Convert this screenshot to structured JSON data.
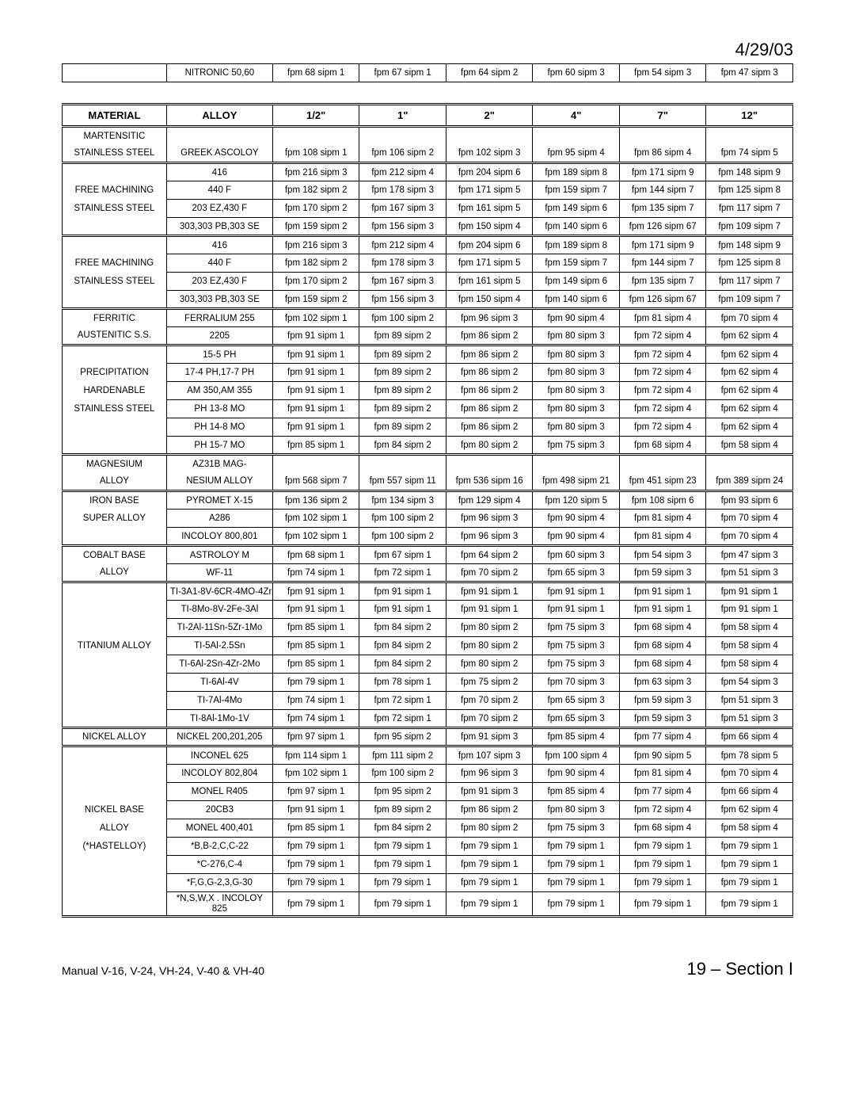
{
  "date": "4/29/03",
  "footer_left": "Manual V-16, V-24, VH-24, V-40 & VH-40",
  "footer_right": "19 – Section I",
  "headers": [
    "MATERIAL",
    "ALLOY",
    "1/2\"",
    "1\"",
    "2\"",
    "4\"",
    "7\"",
    "12\""
  ],
  "top_row": {
    "material": "",
    "alloy": "NITRONIC 50,60",
    "vals": [
      "fpm 68  sipm 1",
      "fpm 67  sipm 1",
      "fpm 64  sipm 2",
      "fpm 60  sipm 3",
      "fpm 54  sipm 3",
      "fpm 47  sipm 3"
    ]
  },
  "sections": [
    {
      "material_lines": [
        "MARTENSITIC",
        "STAINLESS STEEL"
      ],
      "rows": [
        {
          "alloy": "GREEK ASCOLOY",
          "vals": [
            "fpm 108 sipm 1",
            "fpm 106 sipm 2",
            "fpm 102 sipm 3",
            "fpm 95  sipm 4",
            "fpm 86  sipm 4",
            "fpm 74  sipm 5"
          ]
        }
      ],
      "first_row_spans_two": true
    },
    {
      "material_lines": [
        "",
        "FREE MACHINING",
        "STAINLESS STEEL",
        ""
      ],
      "rows": [
        {
          "alloy": "416",
          "vals": [
            "fpm 216 sipm 3",
            "fpm 212 sipm 4",
            "fpm 204 sipm 6",
            "fpm 189 sipm 8",
            "fpm 171 sipm 9",
            "fpm 148 sipm 9"
          ]
        },
        {
          "alloy": "440 F",
          "vals": [
            "fpm 182 sipm 2",
            "fpm 178 sipm 3",
            "fpm 171 sipm 5",
            "fpm 159 sipm 7",
            "fpm 144 sipm 7",
            "fpm 125 sipm 8"
          ]
        },
        {
          "alloy": "203 EZ,430 F",
          "vals": [
            "fpm 170 sipm 2",
            "fpm 167 sipm 3",
            "fpm 161 sipm 5",
            "fpm 149 sipm 6",
            "fpm 135 sipm 7",
            "fpm 117 sipm 7"
          ]
        },
        {
          "alloy": "303,303 PB,303 SE",
          "vals": [
            "fpm 159 sipm 2",
            "fpm 156 sipm 3",
            "fpm 150 sipm 4",
            "fpm 140 sipm 6",
            "fpm 126 sipm 67",
            "fpm 109 sipm 7"
          ]
        }
      ]
    },
    {
      "material_lines": [
        "",
        "FREE MACHINING",
        "STAINLESS STEEL",
        ""
      ],
      "rows": [
        {
          "alloy": "416",
          "vals": [
            "fpm 216 sipm 3",
            "fpm 212 sipm 4",
            "fpm 204 sipm 6",
            "fpm 189 sipm 8",
            "fpm 171 sipm 9",
            "fpm 148 sipm 9"
          ]
        },
        {
          "alloy": "440 F",
          "vals": [
            "fpm 182 sipm 2",
            "fpm 178 sipm 3",
            "fpm 171 sipm 5",
            "fpm 159 sipm 7",
            "fpm 144 sipm 7",
            "fpm 125 sipm 8"
          ]
        },
        {
          "alloy": "203 EZ,430 F",
          "vals": [
            "fpm 170 sipm 2",
            "fpm 167 sipm 3",
            "fpm 161 sipm 5",
            "fpm 149 sipm 6",
            "fpm 135 sipm 7",
            "fpm 117 sipm 7"
          ]
        },
        {
          "alloy": "303,303 PB,303 SE",
          "vals": [
            "fpm 159 sipm 2",
            "fpm 156 sipm 3",
            "fpm 150 sipm 4",
            "fpm 140 sipm 6",
            "fpm 126 sipm 67",
            "fpm 109 sipm 7"
          ]
        }
      ]
    },
    {
      "material_lines": [
        "FERRITIC",
        "AUSTENITIC S.S."
      ],
      "rows": [
        {
          "alloy": "FERRALIUM 255",
          "vals": [
            "fpm 102 sipm 1",
            "fpm 100 sipm 2",
            "fpm 96  sipm 3",
            "fpm 90  sipm 4",
            "fpm 81  sipm 4",
            "fpm 70   sipm 4"
          ]
        },
        {
          "alloy": "2205",
          "vals": [
            "fpm 91  sipm 1",
            "fpm 89  sipm 2",
            "fpm 86  sipm 2",
            "fpm 80  sipm 3",
            "fpm 72  sipm 4",
            "fpm 62  sipm 4"
          ]
        }
      ]
    },
    {
      "material_lines": [
        "",
        "PRECIPITATION",
        "HARDENABLE",
        "STAINLESS STEEL",
        "",
        ""
      ],
      "rows": [
        {
          "alloy": "15-5 PH",
          "vals": [
            "fpm 91  sipm 1",
            "fpm 89  sipm 2",
            "fpm 86  sipm 2",
            "fpm 80  sipm 3",
            "fpm 72  sipm 4",
            "fpm 62  sipm 4"
          ]
        },
        {
          "alloy": "17-4 PH,17-7 PH",
          "vals": [
            "fpm 91  sipm 1",
            "fpm 89  sipm 2",
            "fpm 86  sipm 2",
            "fpm 80  sipm 3",
            "fpm 72  sipm 4",
            "fpm 62  sipm 4"
          ]
        },
        {
          "alloy": "AM 350,AM 355",
          "vals": [
            "fpm 91  sipm 1",
            "fpm 89  sipm 2",
            "fpm 86  sipm 2",
            "fpm 80  sipm 3",
            "fpm 72  sipm 4",
            "fpm 62  sipm 4"
          ]
        },
        {
          "alloy": "PH 13-8 MO",
          "vals": [
            "fpm 91  sipm 1",
            "fpm 89  sipm 2",
            "fpm 86  sipm 2",
            "fpm 80  sipm 3",
            "fpm 72  sipm 4",
            "fpm 62  sipm 4"
          ]
        },
        {
          "alloy": "PH 14-8 MO",
          "vals": [
            "fpm 91  sipm 1",
            "fpm 89  sipm 2",
            "fpm 86  sipm 2",
            "fpm 80  sipm 3",
            "fpm 72  sipm 4",
            "fpm 62  sipm 4"
          ]
        },
        {
          "alloy": "PH 15-7 MO",
          "vals": [
            "fpm 85  sipm 1",
            "fpm 84  sipm 2",
            "fpm 80  sipm 2",
            "fpm 75  sipm 3",
            "fpm 68  sipm 4",
            "fpm 58  sipm 4"
          ]
        }
      ]
    },
    {
      "material_lines": [
        "MAGNESIUM",
        "ALLOY"
      ],
      "rows": [
        {
          "alloy": "AZ31B MAG-",
          "no_vals": true
        },
        {
          "alloy": "NESIUM ALLOY",
          "vals": [
            "fpm 568 sipm 7",
            "fpm 557 sipm 11",
            "fpm 536 sipm 16",
            "fpm 498 sipm 21",
            "fpm 451 sipm 23",
            "fpm 389 sipm 24"
          ]
        }
      ],
      "merge_val_rows": true
    },
    {
      "material_lines": [
        "IRON BASE",
        "SUPER ALLOY",
        ""
      ],
      "rows": [
        {
          "alloy": "PYROMET X-15",
          "vals": [
            "fpm 136 sipm 2",
            "fpm 134 sipm 3",
            "fpm 129 sipm 4",
            "fpm 120 sipm 5",
            "fpm 108 sipm 6",
            "fpm 93  sipm 6"
          ]
        },
        {
          "alloy": "A286",
          "vals": [
            "fpm 102 sipm 1",
            "fpm 100 sipm 2",
            "fpm 96  sipm 3",
            "fpm 90  sipm 4",
            "fpm 81  sipm 4",
            "fpm 70  sipm 4"
          ]
        },
        {
          "alloy": "INCOLOY 800,801",
          "vals": [
            "fpm 102 sipm 1",
            "fpm 100 sipm 2",
            "fpm 96  sipm 3",
            "fpm 90  sipm 4",
            "fpm 81  sipm 4",
            "fpm 70  sipm 4"
          ]
        }
      ]
    },
    {
      "material_lines": [
        "COBALT BASE",
        "ALLOY"
      ],
      "rows": [
        {
          "alloy": "ASTROLOY M",
          "vals": [
            "fpm 68  sipm 1",
            "fpm 67  sipm 1",
            "fpm 64  sipm 2",
            "fpm 60  sipm 3",
            "fpm 54  sipm 3",
            "fpm 47  sipm 3"
          ]
        },
        {
          "alloy": "WF-11",
          "vals": [
            "fpm 74  sipm 1",
            "fpm 72  sipm 1",
            "fpm 70  sipm 2",
            "fpm 65  sipm 3",
            "fpm 59  sipm 3",
            "fpm 51  sipm 3"
          ]
        }
      ]
    },
    {
      "material_lines": [
        "",
        "",
        "",
        "TITANIUM ALLOY",
        "",
        "",
        "",
        ""
      ],
      "rows": [
        {
          "alloy": "TI-3A1-8V-6CR-4MO-4Zr",
          "vals": [
            "fpm 91  sipm 1",
            "fpm 91  sipm 1",
            "fpm 91  sipm 1",
            "fpm 91  sipm 1",
            "fpm 91  sipm 1",
            "fpm 91  sipm 1"
          ]
        },
        {
          "alloy": "TI-8Mo-8V-2Fe-3Al",
          "vals": [
            "fpm 91  sipm 1",
            "fpm 91  sipm 1",
            "fpm 91  sipm 1",
            "fpm 91  sipm 1",
            "fpm 91  sipm 1",
            "fpm 91  sipm 1"
          ]
        },
        {
          "alloy": "TI-2Al-11Sn-5Zr-1Mo",
          "vals": [
            "fpm 85  sipm 1",
            "fpm 84  sipm 2",
            "fpm 80  sipm 2",
            "fpm 75  sipm 3",
            "fpm  68 sipm 4",
            "fpm 58  sipm 4"
          ]
        },
        {
          "alloy": "TI-5Al-2.5Sn",
          "vals": [
            "fpm 85  sipm 1",
            "fpm 84  sipm 2",
            "fpm 80  sipm 2",
            "fpm 75  sipm 3",
            "fpm  68 sipm 4",
            "fpm 58  sipm 4"
          ]
        },
        {
          "alloy": "TI-6Al-2Sn-4Zr-2Mo",
          "vals": [
            "fpm 85  sipm 1",
            "fpm 84  sipm 2",
            "fpm 80  sipm 2",
            "fpm 75  sipm 3",
            "fpm  68 sipm 4",
            "fpm 58  sipm 4"
          ]
        },
        {
          "alloy": "TI-6Al-4V",
          "vals": [
            "fpm 79  sipm 1",
            "fpm 78  sipm 1",
            "fpm 75  sipm 2",
            "fpm 70  sipm 3",
            "fpm 63  sipm 3",
            "fpm 54  sipm 3"
          ]
        },
        {
          "alloy": "TI-7Al-4Mo",
          "vals": [
            "fpm 74  sipm 1",
            "fpm 72  sipm 1",
            "fpm 70  sipm 2",
            "fpm   65 sipm 3",
            "fpm 59  sipm 3",
            "fpm 51  sipm 3"
          ]
        },
        {
          "alloy": "TI-8Al-1Mo-1V",
          "vals": [
            "fpm 74  sipm 1",
            "fpm 72  sipm 1",
            "fpm 70  sipm 2",
            "fpm   65 sipm 3",
            "fpm 59  sipm 3",
            "fpm 51  sipm 3"
          ]
        }
      ]
    },
    {
      "material_lines": [
        "NICKEL ALLOY"
      ],
      "rows": [
        {
          "alloy": "NICKEL 200,201,205",
          "vals": [
            "fpm 97  sipm 1",
            "fpm 95  sipm 2",
            "fpm 91  sipm 3",
            "fpm 85  sipm 4",
            "fpm 77  sipm 4",
            "fpm 66  sipm 4"
          ]
        }
      ]
    },
    {
      "material_lines": [
        "",
        "",
        "",
        "NICKEL BASE",
        "ALLOY",
        "(*HASTELLOY)",
        "",
        "",
        ""
      ],
      "rows": [
        {
          "alloy": "INCONEL 625",
          "vals": [
            "fpm 114 sipm 1",
            "fpm 111 sipm 2",
            "fpm 107 sipm 3",
            "fpm 100 sipm 4",
            "fpm 90 sipm 5",
            "fpm 78  sipm 5"
          ]
        },
        {
          "alloy": "INCOLOY 802,804",
          "vals": [
            "fpm 102 sipm 1",
            "fpm 100 sipm 2",
            "fpm 96  sipm 3",
            "fpm 90  sipm 4",
            "fpm 81  sipm 4",
            "fpm 70 sipm 4"
          ]
        },
        {
          "alloy": "MONEL R405",
          "vals": [
            "fpm 97 sipm 1",
            "fpm 95  sipm 2",
            "fpm 91  sipm 3",
            "fpm 85  sipm 4",
            "fpm 77  sipm 4",
            "fpm 66  sipm 4"
          ]
        },
        {
          "alloy": "20CB3",
          "vals": [
            "fpm 91  sipm 1",
            "fpm 89  sipm 2",
            "fpm 86  sipm 2",
            "fpm 80  sipm 3",
            "fpm 72  sipm 4",
            "fpm 62  sipm 4"
          ]
        },
        {
          "alloy": "MONEL 400,401",
          "vals": [
            "fpm 85  sipm 1",
            "fpm 84   sipm 2",
            "fpm 80  sipm 2",
            "fpm 75  sipm 3",
            "fpm 68  sipm 4",
            "fpm 58  sipm 4"
          ]
        },
        {
          "alloy": "*B,B-2,C,C-22",
          "vals": [
            "fpm 79  sipm 1",
            "fpm 79  sipm 1",
            "fpm 79  sipm 1",
            "fpm 79  sipm 1",
            "fpm 79  sipm 1",
            "fpm 79  sipm 1"
          ]
        },
        {
          "alloy": "*C-276,C-4",
          "vals": [
            "fpm 79  sipm 1",
            "fpm 79  sipm 1",
            "fpm 79  sipm 1",
            "fpm 79  sipm 1",
            "fpm 79  sipm 1",
            "fpm 79  sipm 1"
          ]
        },
        {
          "alloy": "*F,G,G-2,3,G-30",
          "vals": [
            "fpm 79  sipm 1",
            "fpm 79  sipm 1",
            "fpm 79  sipm 1",
            "fpm 79  sipm 1",
            "fpm 79  sipm 1",
            "fpm 79  sipm 1"
          ]
        },
        {
          "alloy": "*N,S,W,X . INCOLOY 825",
          "small": true,
          "vals": [
            "fpm 79  sipm 1",
            "fpm 79  sipm 1",
            "fpm 79  sipm 1",
            "fpm 79  sipm 1",
            "fpm 79  sipm 1",
            "fpm 79  sipm 1"
          ]
        }
      ]
    }
  ]
}
